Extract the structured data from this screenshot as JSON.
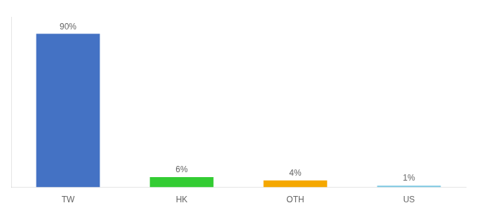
{
  "chart_data": {
    "type": "bar",
    "categories": [
      "TW",
      "HK",
      "OTH",
      "US"
    ],
    "values": [
      90,
      6,
      4,
      1
    ],
    "colors": [
      "#4472c4",
      "#33cc33",
      "#f5a800",
      "#7ec8e3"
    ],
    "data_labels": true,
    "value_labels": [
      "90%",
      "6%",
      "4%",
      "1%"
    ],
    "ylim": [
      0,
      100
    ],
    "grid": false,
    "tick_labels": "x"
  }
}
